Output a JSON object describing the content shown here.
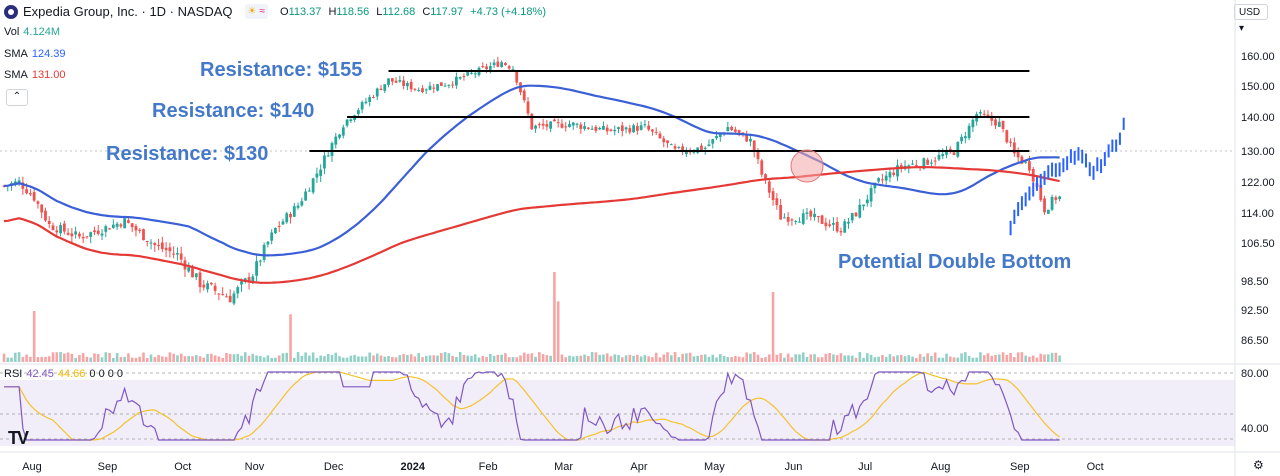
{
  "header": {
    "title": "Expedia Group, Inc. · 1D · NASDAQ",
    "ohlc": [
      {
        "k": "O",
        "v": "113.37"
      },
      {
        "k": "H",
        "v": "118.56"
      },
      {
        "k": "L",
        "v": "112.68"
      },
      {
        "k": "C",
        "v": "117.97"
      }
    ],
    "change": "+4.73 (+4.18%)",
    "currency": "USD"
  },
  "indicators": {
    "vol": {
      "label": "Vol",
      "value": "4.124M",
      "color": "#26a69a"
    },
    "sma_fast": {
      "label": "SMA",
      "value": "124.39",
      "color": "#2962ff"
    },
    "sma_slow": {
      "label": "SMA",
      "value": "131.00",
      "color": "#e53935"
    },
    "rsi": {
      "label": "RSI",
      "value": "42.45",
      "value2": "44.66",
      "extra": "0 0 0 0",
      "color": "#7e57c2"
    }
  },
  "colors": {
    "up": "#26a69a",
    "down": "#ef5350",
    "sma_fast": "#3b5fd6",
    "sma_slow": "#e53935",
    "annotation": "#4478c8",
    "rsi": "#7e57c2",
    "rsi_ma": "#f5c22c"
  },
  "chart_data": {
    "type": "candlestick",
    "price_axis_ticks": [
      "160.00",
      "150.00",
      "140.00",
      "130.00",
      "122.00",
      "114.00",
      "106.50",
      "98.50",
      "92.50",
      "86.50"
    ],
    "price_axis_values": [
      160,
      150,
      140,
      130,
      122,
      114,
      106.5,
      98.5,
      92.5,
      86.5
    ],
    "rsi_axis_ticks": [
      "80.00",
      "40.00"
    ],
    "rsi_axis_values": [
      80,
      40
    ],
    "time_axis_labels": [
      "Aug",
      "Sep",
      "Oct",
      "Nov",
      "Dec",
      "2024",
      "Feb",
      "Mar",
      "Apr",
      "May",
      "Jun",
      "Jul",
      "Aug",
      "Sep",
      "Oct"
    ],
    "time_axis_index": [
      0,
      20,
      40,
      59,
      80,
      101,
      121,
      141,
      161,
      181,
      202,
      221,
      241,
      262,
      282
    ],
    "annotations": [
      {
        "text": "Resistance: $155",
        "price": 155,
        "from_index": 102,
        "to_index": 272
      },
      {
        "text": "Resistance: $140",
        "price": 140,
        "from_index": 91,
        "to_index": 272
      },
      {
        "text": "Resistance: $130",
        "price": 130,
        "from_index": 81,
        "to_index": 272
      },
      {
        "text": "Potential Double Bottom"
      }
    ],
    "golden_cross_index": 213,
    "last_close": 117.97,
    "projection_points": [
      [
        267,
        111
      ],
      [
        272,
        119
      ],
      [
        277,
        124
      ],
      [
        281,
        127
      ],
      [
        285,
        129
      ],
      [
        289,
        125
      ],
      [
        292,
        128
      ],
      [
        296,
        134
      ],
      [
        298,
        141
      ]
    ]
  }
}
